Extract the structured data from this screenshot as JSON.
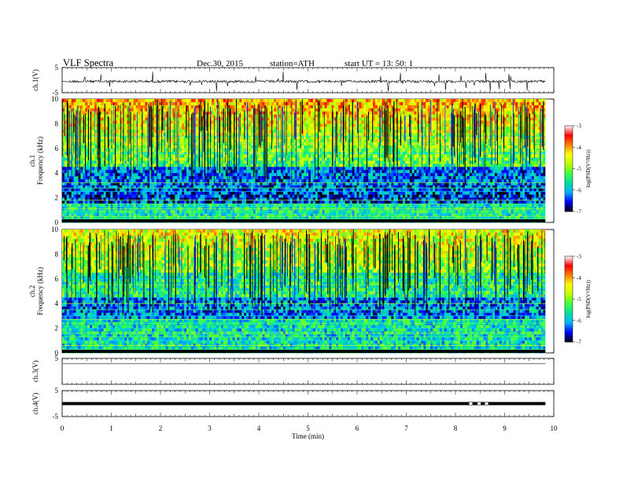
{
  "header": {
    "title": "VLF  Spectra",
    "date": "Dec.30, 2015",
    "station": "station=ATH",
    "start": "start  UT  =   13: 50: 1"
  },
  "chart_data": [
    {
      "type": "line",
      "panel": "ch1",
      "ylabel": "ch.1(V)",
      "ylim": [
        -5,
        5
      ],
      "yticks": [
        "5",
        "-5"
      ],
      "baseline": -0.5,
      "color": "#000000"
    },
    {
      "type": "heatmap",
      "panel": "spec1",
      "ylabel": "ch.1\nFrequency  (kHz)",
      "ylim": [
        0,
        10
      ],
      "yticks": [
        "0",
        "2",
        "4",
        "6",
        "8",
        "10"
      ],
      "colorbar": {
        "label": "log(PSD(V²/Hz))",
        "range": [
          -7,
          -3
        ],
        "ticks": [
          "-3",
          "-4",
          "-5",
          "-6",
          "-7"
        ]
      },
      "bands_khz": [
        0.3,
        0.5,
        0.7,
        0.9,
        1.1,
        1.3,
        1.5,
        1.8,
        2.5,
        2.8,
        3.2,
        5.6,
        5.9,
        6.4,
        7.0
      ],
      "description_rows": "high PSD at upper frequencies, low PSD band 2-4 kHz"
    },
    {
      "type": "heatmap",
      "panel": "spec2",
      "ylabel": "ch.2\nFrequency  (kHz)",
      "ylim": [
        0,
        10
      ],
      "yticks": [
        "0",
        "2",
        "4",
        "6",
        "8",
        "10"
      ],
      "colorbar": {
        "label": "log(PSD(V²/Hz))",
        "range": [
          -7,
          -3
        ],
        "ticks": [
          "-3",
          "-4",
          "-5",
          "-6",
          "-7"
        ]
      },
      "bands_khz": [
        0.3,
        0.6,
        1.0,
        1.3,
        1.6,
        2.0,
        2.4,
        2.7,
        3.0,
        3.5,
        4.0,
        4.5,
        5.0,
        5.5,
        6.0
      ],
      "description_rows": ""
    },
    {
      "type": "line",
      "panel": "ch3",
      "ylabel": "ch.3(V)",
      "ylim": [
        -5,
        5
      ],
      "yticks": [
        "5"
      ],
      "baseline": 3.0,
      "color": "#888888"
    },
    {
      "type": "line",
      "panel": "ch4",
      "ylabel": "ch.4(V)",
      "ylim": [
        -5,
        5
      ],
      "yticks": [
        "5",
        "-5"
      ],
      "baseline": 0.0,
      "color": "#000000",
      "gaps_min": [
        8.28,
        8.45,
        8.6
      ]
    }
  ],
  "xaxis": {
    "label": "Time  (min)",
    "xlim": [
      0,
      10
    ],
    "ticks": [
      "0",
      "1",
      "2",
      "3",
      "4",
      "5",
      "6",
      "7",
      "8",
      "9",
      "10"
    ],
    "data_end_min": 9.83
  },
  "colorscale": [
    "#000010",
    "#0000ff",
    "#00b0ff",
    "#00e0a0",
    "#40ff40",
    "#c0ff00",
    "#ffff00",
    "#ff8000",
    "#ff0000",
    "#ffffff"
  ]
}
